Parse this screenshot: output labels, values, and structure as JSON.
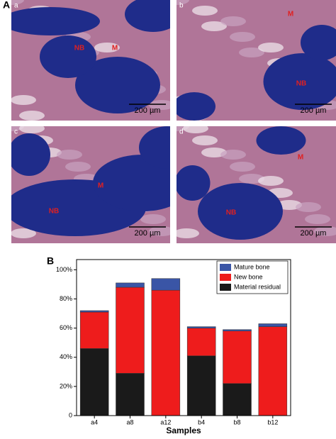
{
  "figure": {
    "panel_a": {
      "label": "A",
      "images": [
        {
          "label": "a",
          "annotations": [
            "NB",
            "M"
          ],
          "scale": "200 µm"
        },
        {
          "label": "b",
          "annotations": [
            "M",
            "NB"
          ],
          "scale": "200 µm"
        },
        {
          "label": "c",
          "annotations": [
            "M",
            "NB"
          ],
          "scale": "200 µm"
        },
        {
          "label": "d",
          "annotations": [
            "M",
            "NB"
          ],
          "scale": "200 µm"
        }
      ]
    },
    "panel_b": {
      "label": "B"
    }
  },
  "chart_data": {
    "type": "stacked-bar",
    "x_label": "Samples",
    "categories": [
      "a4",
      "a8",
      "a12",
      "b4",
      "b8",
      "b12"
    ],
    "series": [
      {
        "name": "Material residual",
        "color": "#1a1a1a",
        "values": [
          46,
          29,
          0,
          41,
          22,
          0
        ]
      },
      {
        "name": "New bone",
        "color": "#ee1c1c",
        "values": [
          25,
          59,
          86,
          19,
          36,
          61
        ]
      },
      {
        "name": "Mature bone",
        "color": "#3a55a6",
        "values": [
          1,
          3,
          8,
          1,
          1,
          2
        ]
      }
    ],
    "ylim": [
      0,
      107
    ],
    "yticks": [
      0,
      {
        "value": 20,
        "label": "20%"
      },
      {
        "value": 40,
        "label": "40%"
      },
      {
        "value": 60,
        "label": "60%"
      },
      {
        "value": 80,
        "label": "80%"
      },
      {
        "value": 100,
        "label": "100%"
      }
    ],
    "legend": "top-right"
  }
}
